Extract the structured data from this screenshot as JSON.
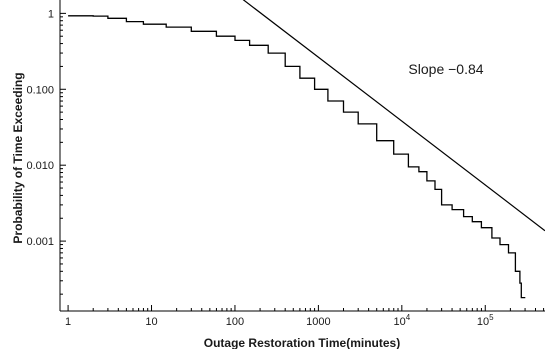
{
  "chart_data": {
    "type": "line",
    "title": "",
    "xlabel": "Outage Restoration Time(minutes)",
    "ylabel": "Probability of Time Exceeding",
    "x_scale": "log",
    "y_scale": "log",
    "xlim": [
      0.8,
      520000
    ],
    "ylim": [
      0.00012,
      1.5
    ],
    "grid": false,
    "legend": "none",
    "x_ticks": [
      {
        "value": 1,
        "label": "1"
      },
      {
        "value": 10,
        "label": "10"
      },
      {
        "value": 100,
        "label": "100"
      },
      {
        "value": 1000,
        "label": "1000"
      },
      {
        "value": 10000,
        "base": "10",
        "exp": "4"
      },
      {
        "value": 100000,
        "base": "10",
        "exp": "5"
      }
    ],
    "y_ticks": [
      {
        "value": 1,
        "label": "1"
      },
      {
        "value": 0.1,
        "label": "0.100"
      },
      {
        "value": 0.01,
        "label": "0.010"
      },
      {
        "value": 0.001,
        "label": "0.001"
      }
    ],
    "series": [
      {
        "type": "step",
        "color": "#000000",
        "points": [
          [
            1,
            0.93
          ],
          [
            2,
            0.92
          ],
          [
            3,
            0.86
          ],
          [
            5,
            0.78
          ],
          [
            8,
            0.72
          ],
          [
            15,
            0.66
          ],
          [
            30,
            0.58
          ],
          [
            60,
            0.5
          ],
          [
            100,
            0.44
          ],
          [
            150,
            0.38
          ],
          [
            250,
            0.3
          ],
          [
            400,
            0.2
          ],
          [
            600,
            0.14
          ],
          [
            900,
            0.1
          ],
          [
            1300,
            0.07
          ],
          [
            2000,
            0.05
          ],
          [
            3000,
            0.035
          ],
          [
            5000,
            0.021
          ],
          [
            8000,
            0.014
          ],
          [
            12000,
            0.0095
          ],
          [
            16000,
            0.0082
          ],
          [
            20000,
            0.0062
          ],
          [
            25000,
            0.0048
          ],
          [
            30000,
            0.003
          ],
          [
            40000,
            0.0026
          ],
          [
            55000,
            0.0021
          ],
          [
            70000,
            0.0018
          ],
          [
            90000,
            0.0015
          ],
          [
            120000,
            0.0011
          ],
          [
            150000,
            0.0009
          ],
          [
            190000,
            0.0007
          ],
          [
            230000,
            0.0004
          ],
          [
            260000,
            0.00028
          ],
          [
            270000,
            0.00018
          ]
        ]
      },
      {
        "type": "reference_line",
        "color": "#000000",
        "points": [
          [
            103,
            1.79
          ],
          [
            520000,
            0.00137
          ]
        ]
      }
    ],
    "annotations": [
      {
        "text": "Slope −0.84",
        "x": 12000,
        "y": 0.16
      }
    ]
  }
}
